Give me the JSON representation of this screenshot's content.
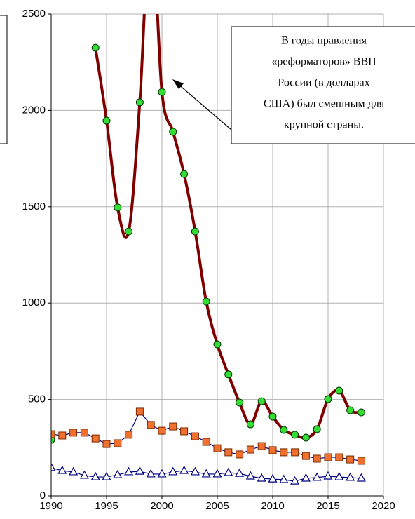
{
  "chart_data": {
    "type": "line",
    "x": [
      1990,
      1991,
      1992,
      1993,
      1994,
      1995,
      1996,
      1997,
      1998,
      1999,
      2000,
      2001,
      2002,
      2003,
      2004,
      2005,
      2006,
      2007,
      2008,
      2009,
      2010,
      2011,
      2012,
      2013,
      2014,
      2015,
      2016,
      2017,
      2018
    ],
    "series": [
      {
        "color": "#800000",
        "marker": "circle",
        "marker_color": "#33dd33",
        "smooth": true,
        "values": [
          291,
          null,
          null,
          null,
          2325,
          1947,
          1496,
          1372,
          2042,
          3000,
          2095,
          1889,
          1670,
          1372,
          1008,
          786,
          630,
          484,
          371,
          491,
          411,
          342,
          317,
          302,
          346,
          502,
          546,
          444,
          433
        ]
      },
      {
        "color": "#000080",
        "marker": "square",
        "marker_color": "#f07030",
        "smooth": false,
        "values": [
          320,
          313,
          328,
          328,
          298,
          269,
          273,
          317,
          437,
          368,
          338,
          360,
          335,
          309,
          280,
          247,
          226,
          215,
          240,
          258,
          237,
          226,
          226,
          207,
          193,
          200,
          200,
          189,
          182
        ]
      },
      {
        "color": "#000080",
        "marker": "triangle",
        "marker_color": "#ffffff",
        "smooth": false,
        "values": [
          146,
          131,
          124,
          106,
          98,
          98,
          109,
          124,
          127,
          113,
          113,
          124,
          131,
          124,
          113,
          113,
          120,
          116,
          102,
          91,
          87,
          84,
          76,
          91,
          95,
          102,
          98,
          95,
          91
        ]
      }
    ],
    "xlim": [
      1990,
      2020
    ],
    "xticks": [
      1990,
      1995,
      2000,
      2005,
      2010,
      2015,
      2020
    ],
    "ylim": [
      0,
      2500
    ],
    "yticks": [
      0,
      500,
      1000,
      1500,
      2000,
      2500
    ],
    "grid": true,
    "annotation": {
      "lines": [
        "В годы правления",
        "«реформаторов» ВВП",
        "России (в долларах",
        "США) был смешным для",
        "крупной страны."
      ]
    }
  }
}
